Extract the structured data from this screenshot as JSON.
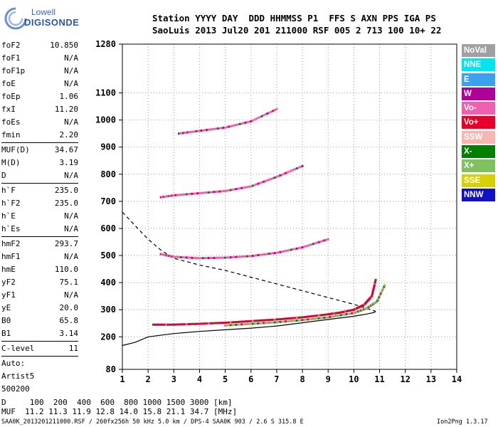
{
  "logo": {
    "line1": "Lowell",
    "line2": "DIGISONDE"
  },
  "header": {
    "line1": "Station YYYY DAY  DDD HHMMSS P1  FFS S AXN PPS IGA PS",
    "line2": "SaoLuis 2013 Jul20 201 211000 RSF 005 2 713 100 10+ 22"
  },
  "params": [
    [
      {
        "k": "foF2",
        "v": "10.850"
      },
      {
        "k": "foF1",
        "v": "N/A"
      },
      {
        "k": "foF1p",
        "v": "N/A"
      },
      {
        "k": "foE",
        "v": "N/A"
      },
      {
        "k": "foEp",
        "v": "1.06"
      },
      {
        "k": "fxI",
        "v": "11.20"
      },
      {
        "k": "foEs",
        "v": "N/A"
      },
      {
        "k": "fmin",
        "v": "2.20"
      }
    ],
    [
      {
        "k": "MUF(D)",
        "v": "34.67"
      },
      {
        "k": "M(D)",
        "v": "3.19"
      },
      {
        "k": "D",
        "v": "N/A"
      }
    ],
    [
      {
        "k": "h`F",
        "v": "235.0"
      },
      {
        "k": "h`F2",
        "v": "235.0"
      },
      {
        "k": "h`E",
        "v": "N/A"
      },
      {
        "k": "h`Es",
        "v": "N/A"
      }
    ],
    [
      {
        "k": "hmF2",
        "v": "293.7"
      },
      {
        "k": "hmF1",
        "v": "N/A"
      },
      {
        "k": "hmE",
        "v": "110.0"
      },
      {
        "k": "yF2",
        "v": "75.1"
      },
      {
        "k": "yF1",
        "v": "N/A"
      },
      {
        "k": "yE",
        "v": "20.0"
      },
      {
        "k": "B0",
        "v": "65.8"
      },
      {
        "k": "B1",
        "v": "3.14"
      }
    ],
    [
      {
        "k": "C-level",
        "v": "11"
      }
    ],
    [
      {
        "k": "Auto:",
        "v": ""
      },
      {
        "k": "Artist5",
        "v": ""
      },
      {
        "k": "500200",
        "v": ""
      }
    ]
  ],
  "legend": [
    {
      "label": "NoVal",
      "color": "#a0a0a0"
    },
    {
      "label": "NNE",
      "color": "#00e5ee"
    },
    {
      "label": "E",
      "color": "#3aa0f0"
    },
    {
      "label": "W",
      "color": "#b0009a"
    },
    {
      "label": "Vo-",
      "color": "#f060b0"
    },
    {
      "label": "Vo+",
      "color": "#e8002a"
    },
    {
      "label": "SSW",
      "color": "#f4b8b0"
    },
    {
      "label": "X-",
      "color": "#008000"
    },
    {
      "label": "X+",
      "color": "#80c060"
    },
    {
      "label": "SSE",
      "color": "#d8d000"
    },
    {
      "label": "NNW",
      "color": "#1010c8"
    }
  ],
  "chart_data": {
    "type": "scatter",
    "xlim": [
      1,
      14
    ],
    "ylim": [
      80,
      1280
    ],
    "xticks": [
      "1",
      "2",
      "3",
      "4",
      "5",
      "6",
      "7",
      "8",
      "9",
      "10",
      "11",
      "12",
      "13",
      "14"
    ],
    "yticks": [
      {
        "v": 80,
        "label": "80"
      },
      {
        "v": 200,
        "label": "200"
      },
      {
        "v": 300,
        "label": "300"
      },
      {
        "v": 400,
        "label": "400"
      },
      {
        "v": 500,
        "label": "500"
      },
      {
        "v": 600,
        "label": "600"
      },
      {
        "v": 700,
        "label": "700"
      },
      {
        "v": 800,
        "label": "800"
      },
      {
        "v": 900,
        "label": "900"
      },
      {
        "v": 1000,
        "label": "1000"
      },
      {
        "v": 1100,
        "label": "1100"
      },
      {
        "v": 1280,
        "label": "1280"
      }
    ],
    "traces": [
      {
        "name": "O-trace F2",
        "color": "#e8002a",
        "x": [
          2.2,
          3,
          4,
          5,
          6,
          7,
          8,
          9,
          9.5,
          10,
          10.4,
          10.7,
          10.85
        ],
        "y": [
          245,
          245,
          248,
          252,
          258,
          264,
          272,
          283,
          290,
          300,
          318,
          350,
          410
        ]
      },
      {
        "name": "X-trace F2",
        "color": "#80c060",
        "x": [
          5,
          6,
          7,
          8,
          9,
          10,
          10.5,
          10.9,
          11.2
        ],
        "y": [
          242,
          248,
          254,
          262,
          272,
          288,
          305,
          330,
          390
        ]
      },
      {
        "name": "2nd hop F2",
        "color": "#f060b0",
        "x": [
          2.5,
          3,
          4,
          5,
          6,
          7,
          8,
          9
        ],
        "y": [
          505,
          495,
          490,
          492,
          498,
          510,
          530,
          560
        ]
      },
      {
        "name": "3rd hop F2",
        "color": "#f060b0",
        "x": [
          2.5,
          3,
          4,
          5,
          6,
          7,
          8
        ],
        "y": [
          715,
          722,
          730,
          738,
          755,
          790,
          830
        ]
      },
      {
        "name": "4th hop F2",
        "color": "#f060b0",
        "x": [
          3.2,
          4,
          5,
          6,
          7
        ],
        "y": [
          950,
          960,
          972,
          995,
          1040
        ]
      }
    ],
    "profile_solid": {
      "x": [
        1,
        1.5,
        2,
        3,
        4,
        5,
        6,
        7,
        8,
        9,
        10,
        10.5,
        10.8,
        10.85
      ],
      "y": [
        168,
        180,
        200,
        212,
        220,
        226,
        232,
        240,
        252,
        264,
        276,
        284,
        290,
        294
      ]
    },
    "profile_dashed": {
      "x": [
        1,
        1.5,
        2,
        2.5,
        3,
        4,
        5,
        6,
        7,
        8,
        9,
        10,
        10.5,
        10.85
      ],
      "y": [
        660,
        610,
        560,
        520,
        490,
        465,
        445,
        420,
        395,
        370,
        345,
        320,
        305,
        294
      ]
    }
  },
  "footer": {
    "line1": "D     100  200  400  600  800 1000 1500 3000 [km]",
    "line2": "MUF  11.2 11.3 11.9 12.8 14.0 15.8 21.1 34.7 [MHz]"
  },
  "info": "SAA0K_2013201211000.RSF / 260fx256h 50 kHz 5.0 km / DPS-4 SAA0K 903 / 2.6 S 315.8 E",
  "version": "Ion2Png 1.3.17"
}
